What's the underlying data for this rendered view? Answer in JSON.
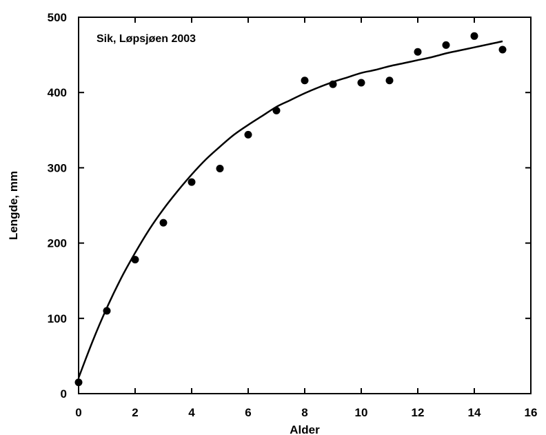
{
  "chart_data": {
    "type": "scatter",
    "title": "",
    "annotation": "Sik, Løpsjøen 2003",
    "xlabel": "Alder",
    "ylabel": "Lengde, mm",
    "xlim": [
      0,
      16
    ],
    "ylim": [
      0,
      500
    ],
    "xticks": [
      0,
      2,
      4,
      6,
      8,
      10,
      12,
      14,
      16
    ],
    "yticks": [
      0,
      100,
      200,
      300,
      400,
      500
    ],
    "grid": false,
    "legend": "none",
    "series": [
      {
        "kind": "points",
        "marker": "filled-circle",
        "color": "#000000",
        "x": [
          0,
          1,
          2,
          3,
          4,
          5,
          6,
          7,
          8,
          9,
          10,
          11,
          12,
          13,
          14,
          15
        ],
        "y": [
          15,
          110,
          178,
          227,
          281,
          299,
          344,
          376,
          416,
          411,
          413,
          416,
          454,
          463,
          475,
          457
        ]
      },
      {
        "kind": "fitted-curve",
        "color": "#000000",
        "x": [
          0,
          0.5,
          1,
          1.5,
          2,
          2.5,
          3,
          3.5,
          4,
          4.5,
          5,
          5.5,
          6,
          6.5,
          7,
          7.5,
          8,
          8.5,
          9,
          9.5,
          10,
          10.5,
          11,
          11.5,
          12,
          12.5,
          13,
          13.5,
          14,
          14.5,
          15
        ],
        "y": [
          21,
          70,
          114,
          153,
          187,
          218,
          245,
          269,
          291,
          311,
          328,
          344,
          357,
          369,
          381,
          390,
          399,
          407,
          414,
          420,
          426,
          430,
          435,
          439,
          443,
          447,
          452,
          456,
          460,
          464,
          468
        ]
      }
    ]
  }
}
